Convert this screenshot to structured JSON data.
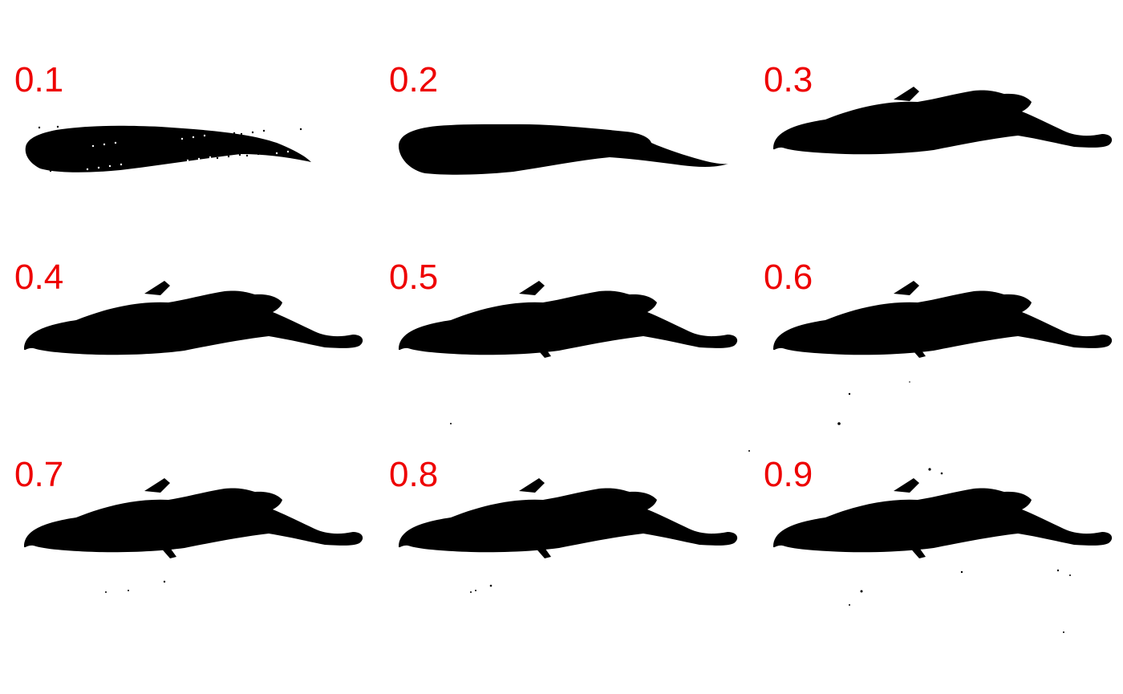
{
  "figure": {
    "label_color": "#ee0000",
    "silhouette_color": "#000000",
    "background_color": "#ffffff",
    "panels": [
      {
        "label": "0.1",
        "threshold": 0.1
      },
      {
        "label": "0.2",
        "threshold": 0.2
      },
      {
        "label": "0.3",
        "threshold": 0.3
      },
      {
        "label": "0.4",
        "threshold": 0.4
      },
      {
        "label": "0.5",
        "threshold": 0.5
      },
      {
        "label": "0.6",
        "threshold": 0.6
      },
      {
        "label": "0.7",
        "threshold": 0.7
      },
      {
        "label": "0.8",
        "threshold": 0.8
      },
      {
        "label": "0.9",
        "threshold": 0.9
      }
    ]
  }
}
